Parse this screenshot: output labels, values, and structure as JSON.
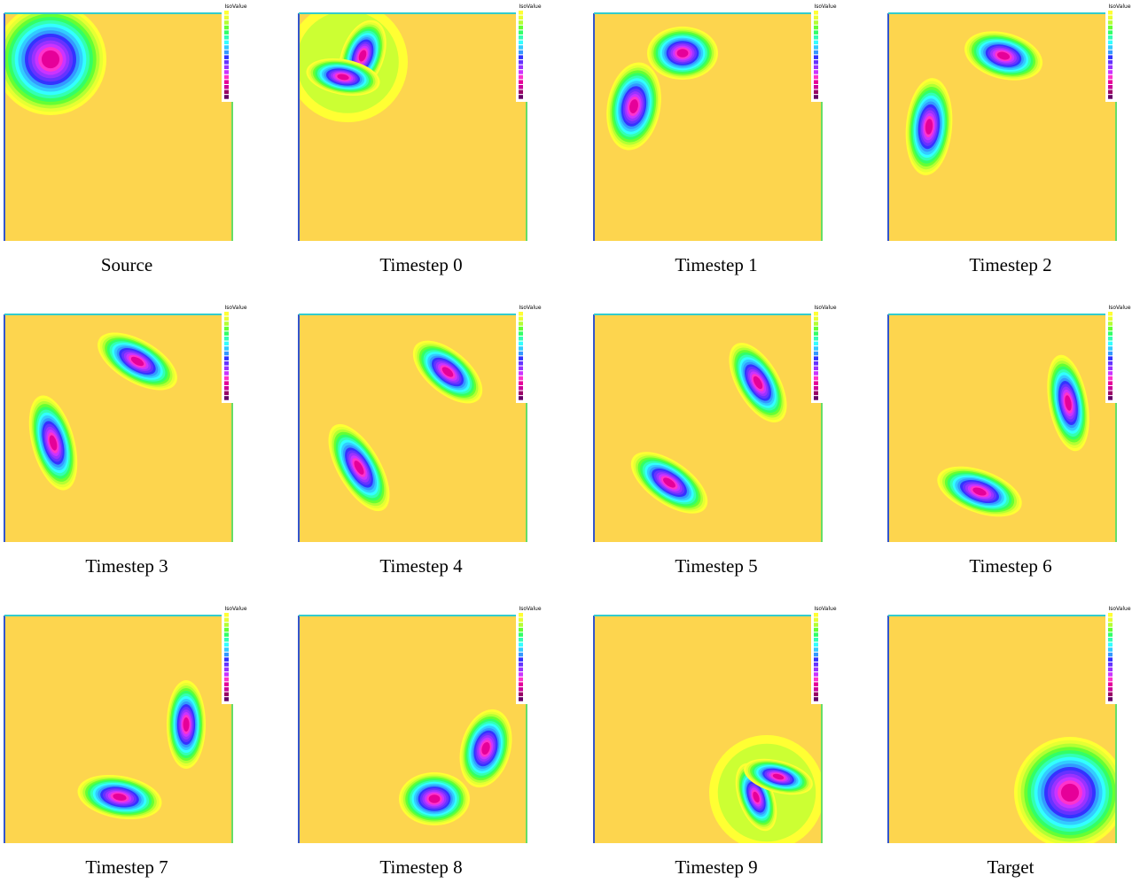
{
  "panels": [
    {
      "caption": "Source",
      "legend_title": "IsoValue"
    },
    {
      "caption": "Timestep 0",
      "legend_title": "IsoValue"
    },
    {
      "caption": "Timestep 1",
      "legend_title": "IsoValue"
    },
    {
      "caption": "Timestep 2",
      "legend_title": "IsoValue"
    },
    {
      "caption": "Timestep 3",
      "legend_title": "IsoValue"
    },
    {
      "caption": "Timestep 4",
      "legend_title": "IsoValue"
    },
    {
      "caption": "Timestep 5",
      "legend_title": "IsoValue"
    },
    {
      "caption": "Timestep 6",
      "legend_title": "IsoValue"
    },
    {
      "caption": "Timestep 7",
      "legend_title": "IsoValue"
    },
    {
      "caption": "Timestep 8",
      "legend_title": "IsoValue"
    },
    {
      "caption": "Timestep 9",
      "legend_title": "IsoValue"
    },
    {
      "caption": "Target",
      "legend_title": "IsoValue"
    }
  ]
}
